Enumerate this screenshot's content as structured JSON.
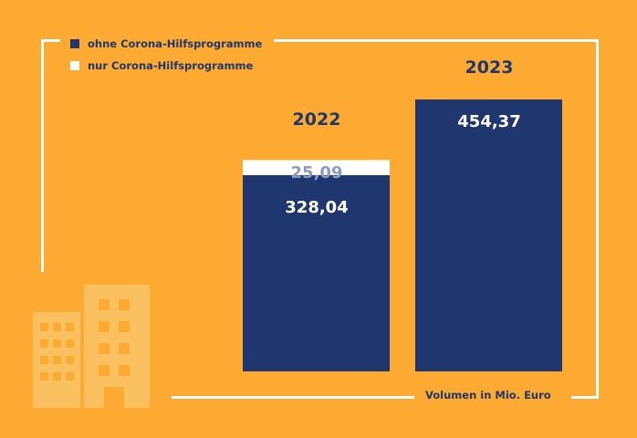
{
  "chart_data": {
    "type": "bar",
    "stacked": true,
    "categories": [
      "2022",
      "2023"
    ],
    "series": [
      {
        "name": "ohne Corona-Hilfsprogramme",
        "color": "#1F376E",
        "values": [
          328.04,
          454.37
        ],
        "labels": [
          "328,04",
          "454,37"
        ]
      },
      {
        "name": "nur Corona-Hilfsprogramme",
        "color": "#FFFFFF",
        "values": [
          25.09,
          0
        ],
        "labels": [
          "25,09",
          ""
        ]
      }
    ],
    "unit_label": "Volumen in Mio. Euro",
    "ylim": [
      0,
      454.37
    ],
    "grid": false,
    "legend_placement": "top-left"
  },
  "colors": {
    "background": "#FDAA33",
    "navy": "#1F376E",
    "white": "#FFFFFF",
    "value_on_white": "#8A9BC0",
    "building_icon": "#FBC060"
  },
  "decoration": {
    "icon": "building-icon"
  }
}
